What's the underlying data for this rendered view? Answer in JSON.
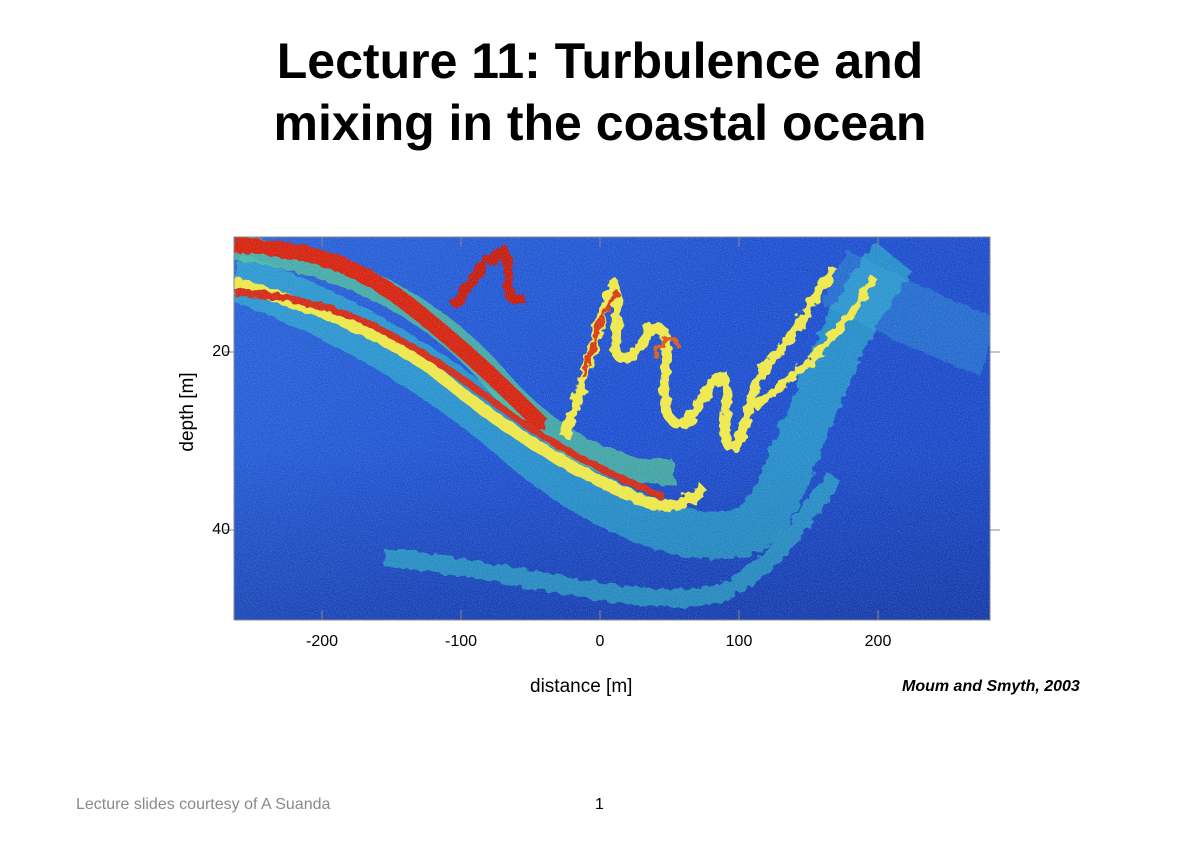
{
  "slide": {
    "title_line1": "Lecture 11: Turbulence and",
    "title_line2": "mixing in the coastal ocean",
    "citation": "Moum and Smyth, 2003",
    "footer_credit": "Lecture slides courtesy of A Suanda",
    "page_number": "1"
  },
  "figure": {
    "xlabel": "distance [m]",
    "ylabel": "depth [m]",
    "x_ticks": [
      "-200",
      "-100",
      "0",
      "100",
      "200"
    ],
    "y_ticks": [
      "20",
      "40"
    ],
    "x_range": [
      -265,
      280
    ],
    "y_range": [
      7,
      50
    ],
    "colors": {
      "background_low": "#1f4fd0",
      "mid": "#2fd6d0",
      "mid_high": "#f2e94a",
      "high": "#d82010"
    }
  }
}
